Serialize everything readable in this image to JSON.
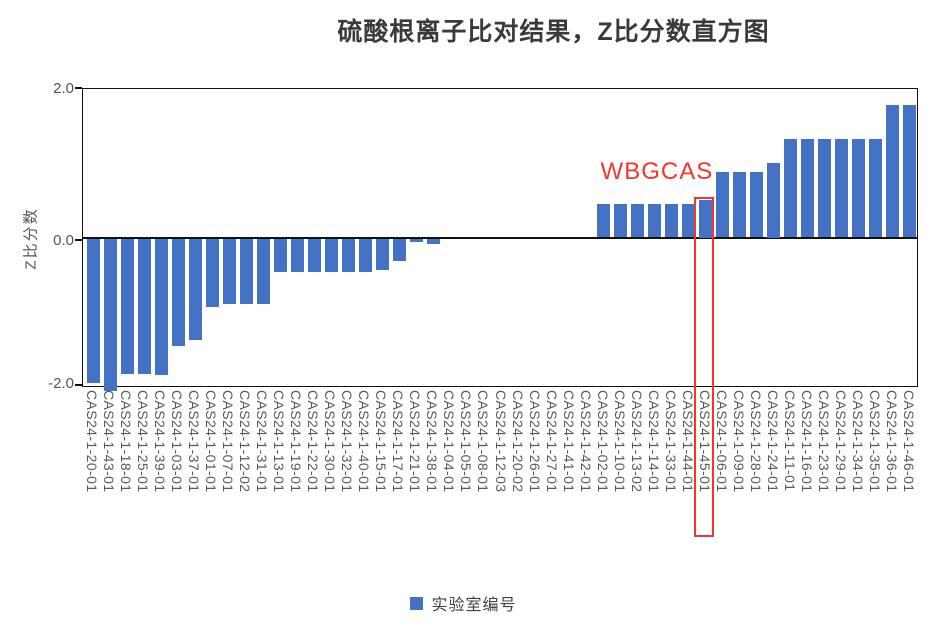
{
  "page": {
    "background": "#ffffff"
  },
  "chart_data": {
    "type": "bar",
    "title": "硫酸根离子比对结果，Z比分数直方图",
    "ylabel": "Z比分数",
    "xlabel": "",
    "ylim": [
      -2.0,
      2.0
    ],
    "yticks": {
      "top": "2.0",
      "mid": "0.0",
      "bottom": "-2.0"
    },
    "ytick_values": [
      2.0,
      0.0,
      -2.0
    ],
    "grid": false,
    "bar_color": "#4472C4",
    "legend": {
      "label": "实验室编号",
      "position": "bottom-center",
      "swatch_color": "#4472C4"
    },
    "categories": [
      "CAS24-1-20-01",
      "CAS24-1-43-01",
      "CAS24-1-18-01",
      "CAS24-1-25-01",
      "CAS24-1-39-01",
      "CAS24-1-03-01",
      "CAS24-1-37-01",
      "CAS24-1-01-01",
      "CAS24-1-07-01",
      "CAS24-1-12-02",
      "CAS24-1-31-01",
      "CAS24-1-13-01",
      "CAS24-1-19-01",
      "CAS24-1-22-01",
      "CAS24-1-30-01",
      "CAS24-1-32-01",
      "CAS24-1-40-01",
      "CAS24-1-15-01",
      "CAS24-1-17-01",
      "CAS24-1-21-01",
      "CAS24-1-38-01",
      "CAS24-1-04-01",
      "CAS24-1-05-01",
      "CAS24-1-08-01",
      "CAS24-1-12-03",
      "CAS24-1-20-02",
      "CAS24-1-26-01",
      "CAS24-1-27-01",
      "CAS24-1-41-01",
      "CAS24-1-42-01",
      "CAS24-1-02-01",
      "CAS24-1-10-01",
      "CAS24-1-13-02",
      "CAS24-1-14-01",
      "CAS24-1-33-01",
      "CAS24-1-44-01",
      "CAS24-1-45-01",
      "CAS24-1-06-01",
      "CAS24-1-09-01",
      "CAS24-1-28-01",
      "CAS24-1-24-01",
      "CAS24-1-11-01",
      "CAS24-1-16-01",
      "CAS24-1-23-01",
      "CAS24-1-29-01",
      "CAS24-1-34-01",
      "CAS24-1-35-01",
      "CAS24-1-36-01",
      "CAS24-1-46-01"
    ],
    "values": [
      -1.95,
      -2.05,
      -1.83,
      -1.83,
      -1.84,
      -1.45,
      -1.37,
      -0.92,
      -0.88,
      -0.88,
      -0.88,
      -0.45,
      -0.45,
      -0.45,
      -0.45,
      -0.45,
      -0.45,
      -0.43,
      -0.3,
      -0.05,
      -0.08,
      0,
      0,
      0,
      0,
      0,
      0,
      0,
      0,
      0,
      0.45,
      0.45,
      0.45,
      0.45,
      0.45,
      0.45,
      0.5,
      0.88,
      0.88,
      0.88,
      1.0,
      1.33,
      1.33,
      1.33,
      1.33,
      1.33,
      1.33,
      1.78,
      1.78
    ],
    "annotation": {
      "text": "WBGCAS",
      "color": "#f5352a",
      "highlighted_category": "CAS24-1-45-01",
      "highlighted_index": 36,
      "highlight_box_color": "#f5352a"
    }
  }
}
